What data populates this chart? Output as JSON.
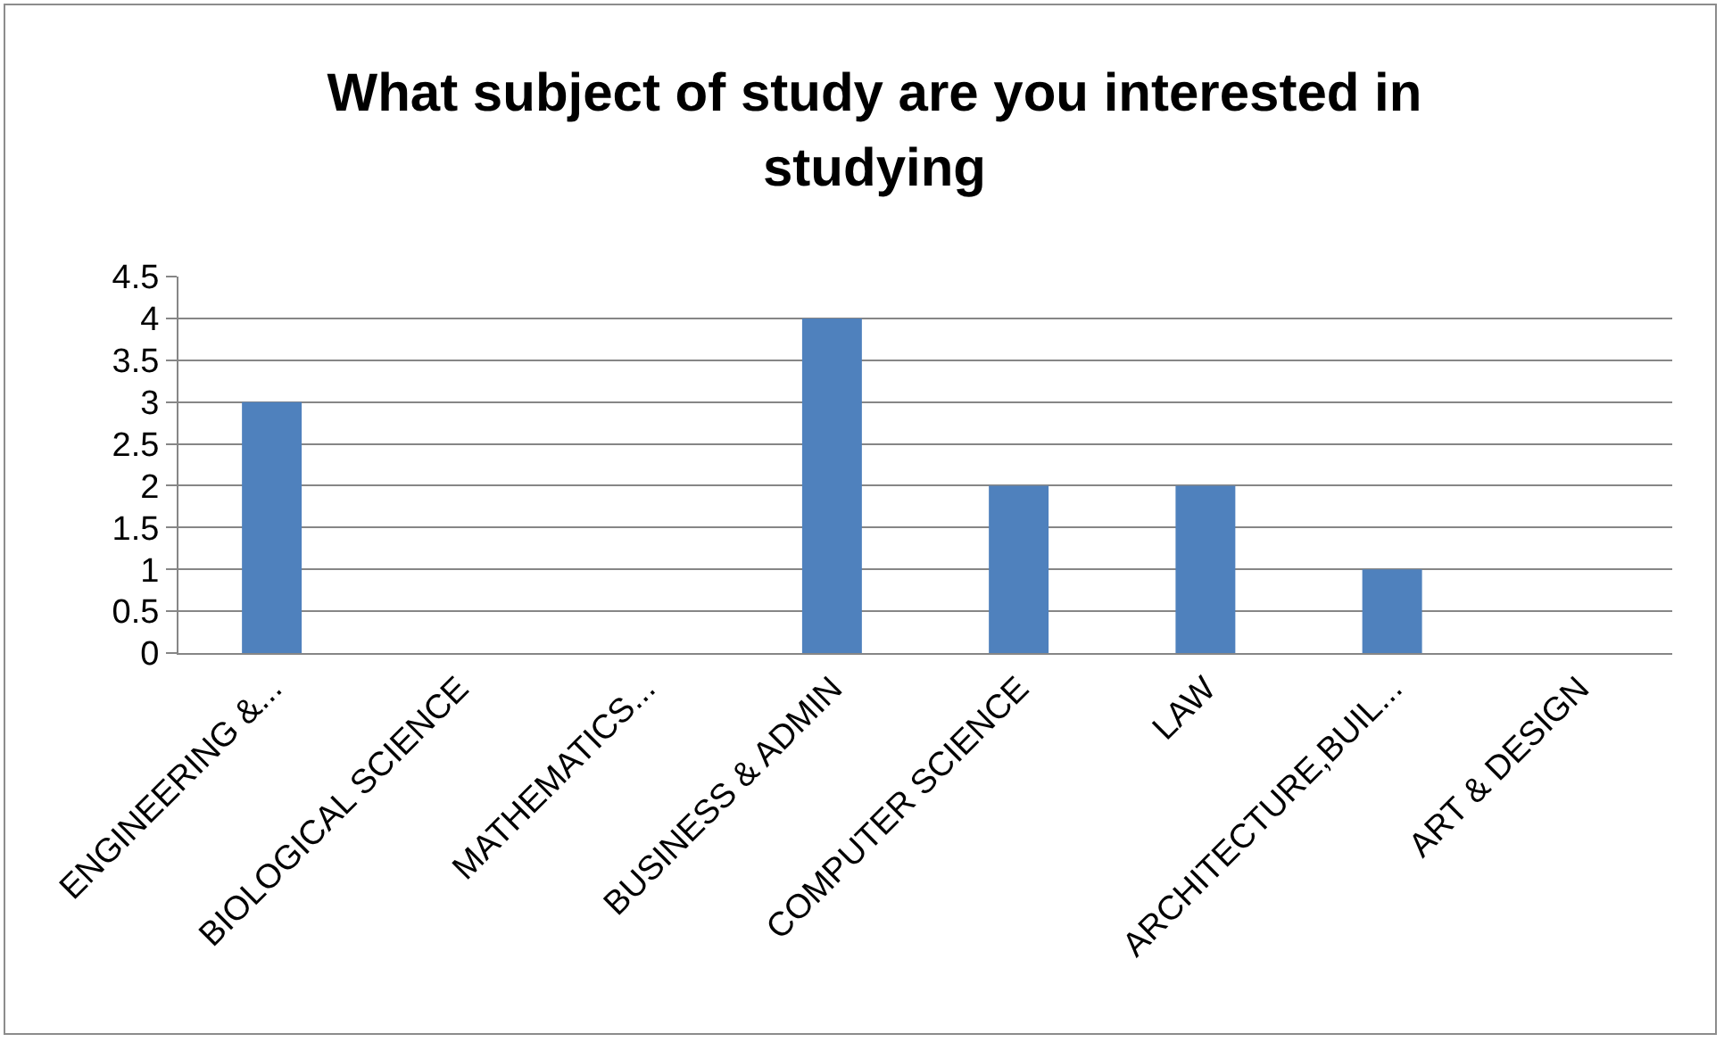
{
  "chart_data": {
    "type": "bar",
    "title": "What subject of study are you interested in studying",
    "categories": [
      "ENGINEERING &...",
      "BIOLOGICAL SCIENCE",
      "MATHEMATICS...",
      "BUSINESS & ADMIN",
      "COMPUTER SCIENCE",
      "LAW",
      "ARCHITECTURE,BUIL...",
      "ART & DESIGN"
    ],
    "values": [
      3,
      0,
      0,
      4,
      2,
      2,
      1,
      0
    ],
    "color": "#4f81bd",
    "ylim": [
      0,
      4.5
    ],
    "yticks": [
      0,
      0.5,
      1,
      1.5,
      2,
      2.5,
      3,
      3.5,
      4,
      4.5
    ],
    "grid": "y",
    "legend": false
  }
}
